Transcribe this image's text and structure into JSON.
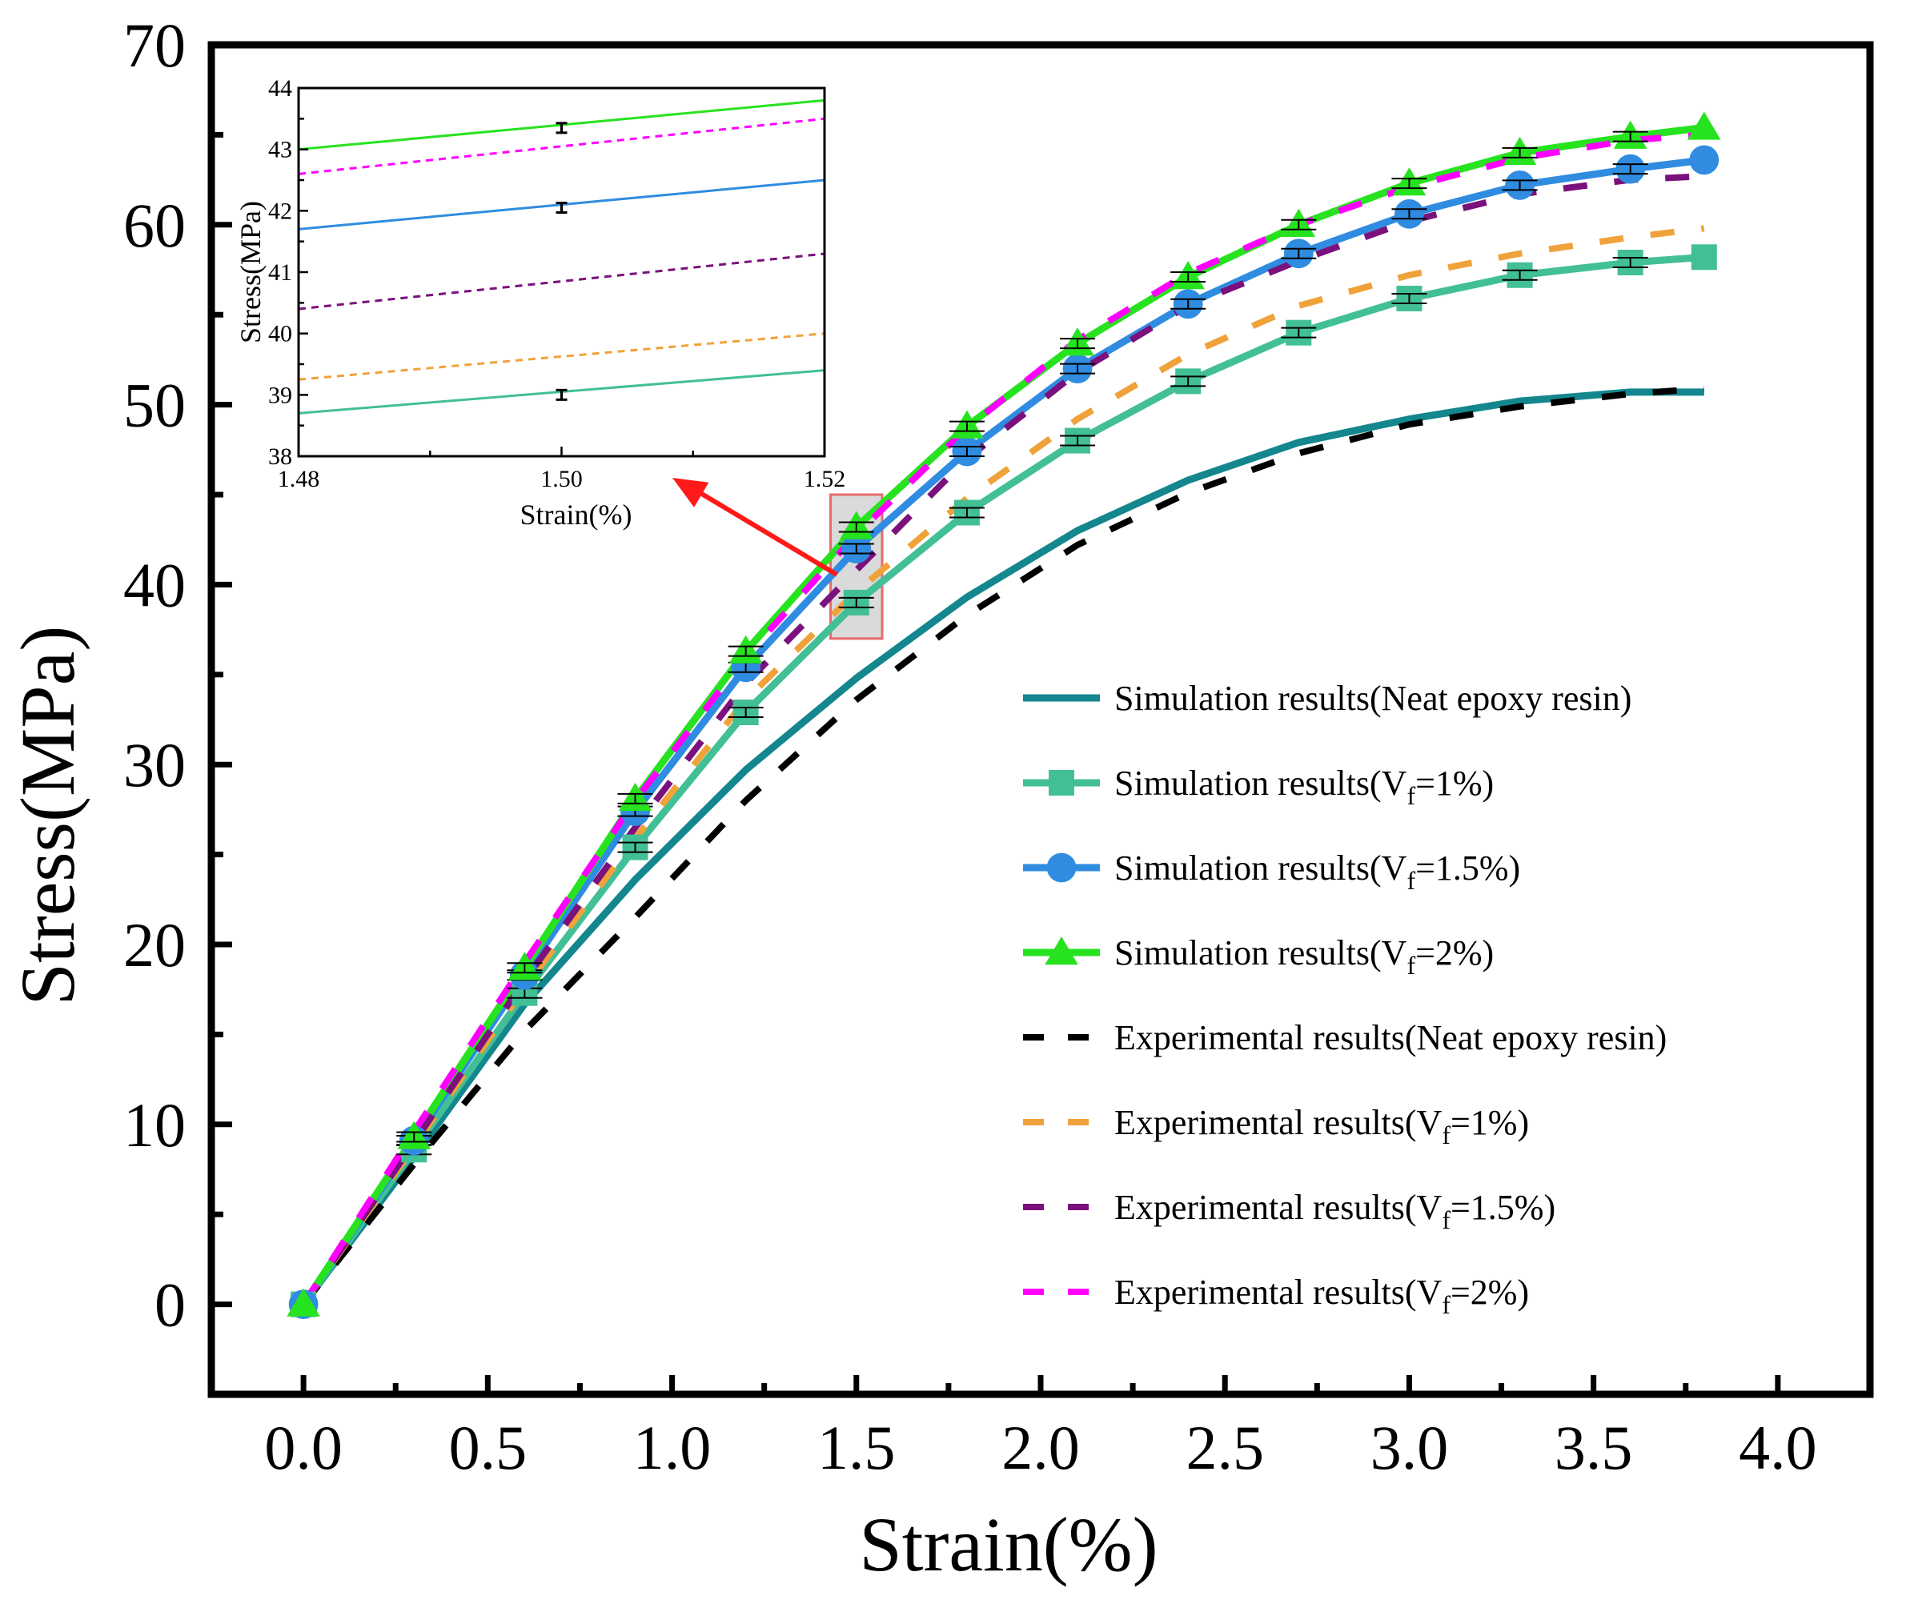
{
  "chart_data": {
    "type": "line",
    "title": "",
    "xlabel": "Strain(%)",
    "ylabel": "Stress(MPa)",
    "xlim": [
      -0.25,
      4.25
    ],
    "ylim": [
      -5,
      70
    ],
    "xticks": [
      0.0,
      0.5,
      1.0,
      1.5,
      2.0,
      2.5,
      3.0,
      3.5,
      4.0
    ],
    "xtick_labels": [
      "0.0",
      "0.5",
      "1.0",
      "1.5",
      "2.0",
      "2.5",
      "3.0",
      "3.5",
      "4.0"
    ],
    "yticks": [
      0,
      10,
      20,
      30,
      40,
      50,
      60,
      70
    ],
    "ytick_labels": [
      "0",
      "10",
      "20",
      "30",
      "40",
      "50",
      "60",
      "70"
    ],
    "x": [
      0,
      0.3,
      0.6,
      0.9,
      1.2,
      1.5,
      1.8,
      2.1,
      2.4,
      2.7,
      3.0,
      3.3,
      3.6,
      3.8
    ],
    "series": [
      {
        "name": "Simulation results(Neat epoxy resin)",
        "label_main": "Simulation results(Neat epoxy resin)",
        "label_sub": "",
        "label_end": "",
        "color": "#13868E",
        "style": "solid",
        "marker": "none",
        "values": [
          0,
          8.2,
          16.7,
          23.6,
          29.7,
          34.8,
          39.3,
          43.0,
          45.8,
          47.9,
          49.2,
          50.2,
          50.7,
          50.7
        ],
        "error_bars": [
          false,
          false,
          false,
          false,
          false,
          false,
          false,
          false,
          false,
          false,
          false,
          false,
          false,
          false
        ]
      },
      {
        "name": "Simulation results(Vf=1%)",
        "label_main": "Simulation results(V",
        "label_sub": "f",
        "label_end": "=1%)",
        "color": "#43BF96",
        "style": "solid",
        "marker": "square",
        "values": [
          0,
          8.6,
          17.3,
          25.4,
          32.9,
          39.0,
          44.0,
          48.0,
          51.3,
          54.0,
          55.9,
          57.2,
          57.9,
          58.2
        ],
        "error_bars": [
          false,
          true,
          true,
          true,
          true,
          true,
          true,
          true,
          true,
          true,
          true,
          true,
          true,
          false
        ]
      },
      {
        "name": "Simulation results(Vf=1.5%)",
        "label_main": "Simulation results(V",
        "label_sub": "f",
        "label_end": "=1.5%)",
        "color": "#2F8CE0",
        "style": "solid",
        "marker": "circle",
        "values": [
          0,
          9.1,
          18.3,
          27.4,
          35.4,
          42.0,
          47.4,
          52.0,
          55.6,
          58.4,
          60.6,
          62.2,
          63.1,
          63.6
        ],
        "error_bars": [
          false,
          true,
          true,
          true,
          true,
          true,
          true,
          true,
          true,
          true,
          true,
          true,
          true,
          false
        ]
      },
      {
        "name": "Simulation results(Vf=2%)",
        "label_main": "Simulation results(V",
        "label_sub": "f",
        "label_end": "=2%)",
        "color": "#27E31F",
        "style": "solid",
        "marker": "triangle",
        "values": [
          0,
          9.3,
          18.7,
          28.1,
          36.3,
          43.2,
          48.8,
          53.4,
          57.1,
          60.0,
          62.3,
          64.0,
          64.9,
          65.4
        ],
        "error_bars": [
          false,
          true,
          true,
          true,
          true,
          true,
          true,
          true,
          true,
          true,
          true,
          true,
          true,
          false
        ]
      },
      {
        "name": "Experimental results(Neat epoxy resin)",
        "label_main": "Experimental results(Neat epoxy resin)",
        "label_sub": "",
        "label_end": "",
        "color": "#000000",
        "style": "dashed",
        "marker": "none",
        "values": [
          0,
          7.8,
          15.2,
          21.5,
          28.0,
          33.6,
          38.3,
          42.2,
          45.1,
          47.3,
          48.9,
          49.9,
          50.6,
          50.9
        ],
        "error_bars": [
          false,
          false,
          false,
          false,
          false,
          false,
          false,
          false,
          false,
          false,
          false,
          false,
          false,
          false
        ]
      },
      {
        "name": "Experimental results(Vf=1%)",
        "label_main": "Experimental results(V",
        "label_sub": "f",
        "label_end": "=1%)",
        "color": "#F0A23A",
        "style": "dashed",
        "marker": "none",
        "values": [
          0,
          8.8,
          17.6,
          25.9,
          33.6,
          39.6,
          44.8,
          49.2,
          52.8,
          55.5,
          57.2,
          58.4,
          59.3,
          59.8
        ],
        "error_bars": [
          false,
          false,
          false,
          false,
          false,
          false,
          false,
          false,
          false,
          false,
          false,
          false,
          false,
          false
        ]
      },
      {
        "name": "Experimental results(Vf=1.5%)",
        "label_main": "Experimental results(V",
        "label_sub": "f",
        "label_end": "=1.5%)",
        "color": "#7A117D",
        "style": "dashed",
        "marker": "none",
        "values": [
          0,
          9.0,
          18.0,
          26.5,
          34.5,
          40.8,
          47.0,
          51.8,
          55.5,
          58.0,
          60.2,
          61.7,
          62.5,
          62.7
        ],
        "error_bars": [
          false,
          false,
          false,
          false,
          false,
          false,
          false,
          false,
          false,
          false,
          false,
          false,
          false,
          false
        ]
      },
      {
        "name": "Experimental results(Vf=2%)",
        "label_main": "Experimental results(V",
        "label_sub": "f",
        "label_end": "=2%)",
        "color": "#FF00FF",
        "style": "dashed",
        "marker": "none",
        "values": [
          0,
          9.6,
          19.0,
          28.0,
          36.0,
          42.8,
          48.7,
          53.6,
          57.3,
          60.0,
          62.1,
          63.7,
          64.7,
          65.0
        ],
        "error_bars": [
          false,
          false,
          false,
          false,
          false,
          false,
          false,
          false,
          false,
          false,
          false,
          false,
          false,
          false
        ]
      }
    ],
    "legend_position": "right",
    "zoom_region": {
      "x": [
        1.43,
        1.57
      ],
      "y": [
        37,
        45
      ],
      "label": "zoomed region"
    },
    "inset": {
      "xlabel": "Strain(%)",
      "ylabel": "Stress(MPa)",
      "xlim": [
        1.48,
        1.52
      ],
      "ylim": [
        38,
        44
      ],
      "xticks": [
        1.48,
        1.5,
        1.52
      ],
      "xtick_labels": [
        "1.48",
        "1.50",
        "1.52"
      ],
      "yticks": [
        38,
        39,
        40,
        41,
        42,
        43,
        44
      ],
      "ytick_labels": [
        "38",
        "39",
        "40",
        "41",
        "42",
        "43",
        "44"
      ],
      "lines": [
        {
          "series": "Simulation results(Vf=2%)",
          "color": "#27E31F",
          "style": "solid",
          "x": [
            1.48,
            1.52
          ],
          "y": [
            43.0,
            43.8
          ],
          "error_at": 1.5,
          "error_y": 43.35
        },
        {
          "series": "Experimental results(Vf=2%)",
          "color": "#FF00FF",
          "style": "dashed",
          "x": [
            1.48,
            1.52
          ],
          "y": [
            42.6,
            43.5
          ],
          "error_at": null,
          "error_y": null
        },
        {
          "series": "Simulation results(Vf=1.5%)",
          "color": "#2F8CE0",
          "style": "solid",
          "x": [
            1.48,
            1.52
          ],
          "y": [
            41.7,
            42.5
          ],
          "error_at": 1.5,
          "error_y": 42.05
        },
        {
          "series": "Experimental results(Vf=1.5%)",
          "color": "#7A117D",
          "style": "dashed",
          "x": [
            1.48,
            1.52
          ],
          "y": [
            40.4,
            41.3
          ],
          "error_at": null,
          "error_y": null
        },
        {
          "series": "Experimental results(Vf=1%)",
          "color": "#F0A23A",
          "style": "dashed",
          "x": [
            1.48,
            1.52
          ],
          "y": [
            39.25,
            40.0
          ],
          "error_at": null,
          "error_y": null
        },
        {
          "series": "Simulation results(Vf=1%)",
          "color": "#43BF96",
          "style": "solid",
          "x": [
            1.48,
            1.52
          ],
          "y": [
            38.7,
            39.4
          ],
          "error_at": 1.5,
          "error_y": 39.0
        }
      ]
    }
  }
}
